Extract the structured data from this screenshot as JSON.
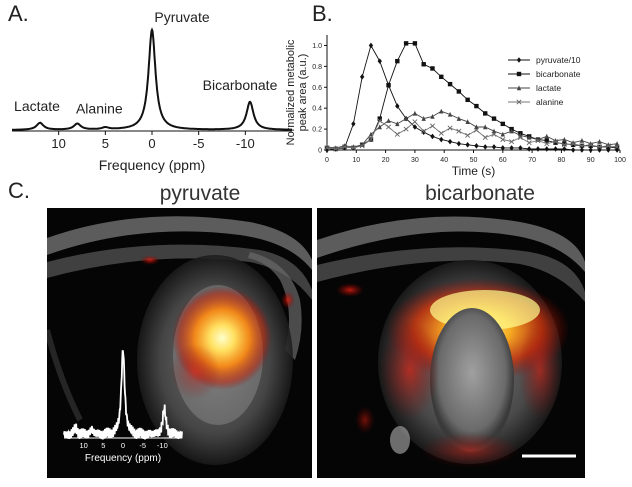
{
  "panels": {
    "a": "A.",
    "b": "B.",
    "c": "C."
  },
  "chart_data": [
    {
      "type": "line",
      "panel": "A",
      "xlabel": "Frequency (ppm)",
      "x_ticks": [
        "10",
        "5",
        "0",
        "-5",
        "-10"
      ],
      "x_tick_values": [
        10,
        5,
        0,
        -5,
        -10
      ],
      "xlim": [
        15,
        -15
      ],
      "x_reversed": true,
      "peaks": [
        {
          "label": "Lactate",
          "ppm": 12.0,
          "height": 0.07
        },
        {
          "label": "Alanine",
          "ppm": 8.0,
          "height": 0.06
        },
        {
          "label": "",
          "ppm": 5.0,
          "height": 0.02
        },
        {
          "label": "Pyruvate",
          "ppm": 0.0,
          "height": 1.0
        },
        {
          "label": "Bicarbonate",
          "ppm": -10.5,
          "height": 0.28
        }
      ]
    },
    {
      "type": "line",
      "panel": "B",
      "xlabel": "Time (s)",
      "ylabel": "Normalized metabolic peak area (a.u.)",
      "xlim": [
        0,
        100
      ],
      "ylim": [
        0,
        1.1
      ],
      "x_ticks": [
        "0",
        "10",
        "20",
        "30",
        "40",
        "50",
        "60",
        "70",
        "80",
        "90",
        "100"
      ],
      "y_ticks": [
        "0",
        "0.2",
        "0.4",
        "0.6",
        "0.8",
        "1.0"
      ],
      "legend_position": "right",
      "series": [
        {
          "name": "pyruvate/10",
          "marker": "diamond",
          "x": [
            0,
            3,
            6,
            9,
            12,
            15,
            18,
            21,
            24,
            27,
            30,
            33,
            36,
            39,
            42,
            45,
            48,
            51,
            54,
            57,
            60,
            63,
            66,
            69,
            72,
            75,
            78,
            81,
            84,
            87,
            90,
            93,
            96,
            99
          ],
          "y": [
            0,
            0.01,
            0.02,
            0.25,
            0.7,
            1.0,
            0.85,
            0.62,
            0.42,
            0.3,
            0.22,
            0.17,
            0.13,
            0.1,
            0.08,
            0.06,
            0.05,
            0.04,
            0.03,
            0.03,
            0.02,
            0.02,
            0.02,
            0.01,
            0.01,
            0.01,
            0.01,
            0.01,
            0,
            0,
            0,
            0,
            0,
            0
          ]
        },
        {
          "name": "bicarbonate",
          "marker": "square",
          "x": [
            0,
            3,
            6,
            9,
            12,
            15,
            18,
            21,
            24,
            27,
            30,
            33,
            36,
            39,
            42,
            45,
            48,
            51,
            54,
            57,
            60,
            63,
            66,
            69,
            72,
            75,
            78,
            81,
            84,
            87,
            90,
            93,
            96,
            99
          ],
          "y": [
            0.02,
            0.01,
            0.03,
            0.02,
            0.05,
            0.1,
            0.3,
            0.62,
            0.85,
            1.02,
            1.02,
            0.82,
            0.78,
            0.7,
            0.63,
            0.56,
            0.48,
            0.42,
            0.35,
            0.3,
            0.25,
            0.2,
            0.16,
            0.13,
            0.1,
            0.09,
            0.07,
            0.06,
            0.05,
            0.04,
            0.04,
            0.03,
            0.03,
            0.02
          ]
        },
        {
          "name": "lactate",
          "marker": "triangle",
          "x": [
            0,
            3,
            6,
            9,
            12,
            15,
            18,
            21,
            24,
            27,
            30,
            33,
            36,
            39,
            42,
            45,
            48,
            51,
            54,
            57,
            60,
            63,
            66,
            69,
            72,
            75,
            78,
            81,
            84,
            87,
            90,
            93,
            96,
            99
          ],
          "y": [
            0.03,
            0.02,
            0.04,
            0.03,
            0.05,
            0.15,
            0.22,
            0.28,
            0.25,
            0.3,
            0.35,
            0.3,
            0.32,
            0.37,
            0.34,
            0.3,
            0.27,
            0.22,
            0.22,
            0.18,
            0.15,
            0.18,
            0.14,
            0.12,
            0.1,
            0.13,
            0.09,
            0.1,
            0.07,
            0.09,
            0.06,
            0.08,
            0.05,
            0.06
          ]
        },
        {
          "name": "alanine",
          "marker": "x",
          "x": [
            0,
            3,
            6,
            9,
            12,
            15,
            18,
            21,
            24,
            27,
            30,
            33,
            36,
            39,
            42,
            45,
            48,
            51,
            54,
            57,
            60,
            63,
            66,
            69,
            72,
            75,
            78,
            81,
            84,
            87,
            90,
            93,
            96,
            99
          ],
          "y": [
            0.02,
            0.01,
            0.03,
            0.02,
            0.04,
            0.1,
            0.28,
            0.22,
            0.15,
            0.2,
            0.27,
            0.18,
            0.23,
            0.16,
            0.21,
            0.18,
            0.14,
            0.19,
            0.12,
            0.15,
            0.1,
            0.08,
            0.12,
            0.07,
            0.09,
            0.06,
            0.08,
            0.05,
            0.06,
            0.04,
            0.05,
            0.03,
            0.04,
            0.03
          ]
        }
      ]
    }
  ],
  "mri": {
    "left_title": "pyruvate",
    "right_title": "bicarbonate",
    "inset": {
      "xlabel": "Frequency (ppm)",
      "x_ticks": [
        "10",
        "5",
        "0",
        "-5",
        "-10"
      ],
      "peaks": [
        {
          "ppm": 12.0,
          "height": 0.08
        },
        {
          "ppm": 8.0,
          "height": 0.06
        },
        {
          "ppm": 0.0,
          "height": 1.0
        },
        {
          "ppm": -10.5,
          "height": 0.3
        }
      ]
    },
    "colors": {
      "hot_core": "#ffff99",
      "hot_mid": "#ffa020",
      "hot_edge": "#e02000",
      "tissue": "#6a6a6a"
    }
  }
}
